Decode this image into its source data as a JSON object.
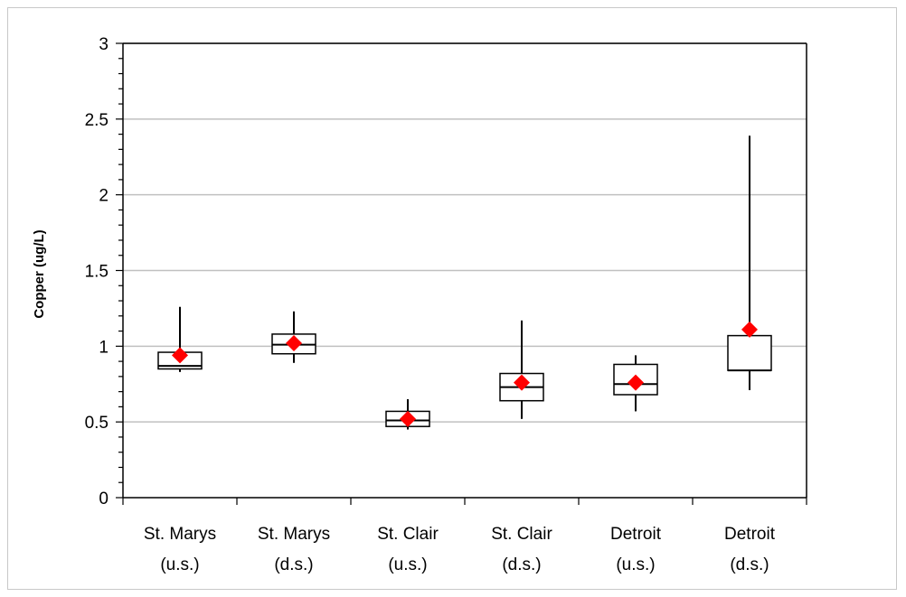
{
  "chart_data": {
    "type": "box",
    "title": "",
    "xlabel": "",
    "ylabel": "Copper (ug/L)",
    "ylim": [
      0,
      3
    ],
    "y_ticks": [
      "0",
      "0.5",
      "1",
      "1.5",
      "2",
      "2.5",
      "3"
    ],
    "grid": "horizontal",
    "categories": [
      {
        "line1": "St. Marys",
        "line2": "(u.s.)"
      },
      {
        "line1": "St. Marys",
        "line2": "(d.s.)"
      },
      {
        "line1": "St. Clair",
        "line2": "(u.s.)"
      },
      {
        "line1": "St. Clair",
        "line2": "(d.s.)"
      },
      {
        "line1": "Detroit",
        "line2": "(u.s.)"
      },
      {
        "line1": "Detroit",
        "line2": "(d.s.)"
      }
    ],
    "boxes": [
      {
        "min": 0.83,
        "q1": 0.85,
        "median": 0.87,
        "q3": 0.96,
        "max": 1.26,
        "mean": 0.94
      },
      {
        "min": 0.89,
        "q1": 0.95,
        "median": 1.01,
        "q3": 1.08,
        "max": 1.23,
        "mean": 1.02
      },
      {
        "min": 0.45,
        "q1": 0.47,
        "median": 0.51,
        "q3": 0.57,
        "max": 0.65,
        "mean": 0.52
      },
      {
        "min": 0.52,
        "q1": 0.64,
        "median": 0.73,
        "q3": 0.82,
        "max": 1.17,
        "mean": 0.76
      },
      {
        "min": 0.57,
        "q1": 0.68,
        "median": 0.75,
        "q3": 0.88,
        "max": 0.94,
        "mean": 0.76
      },
      {
        "min": 0.71,
        "q1": 0.84,
        "median": 0.84,
        "q3": 1.07,
        "max": 2.39,
        "mean": 1.11
      }
    ],
    "colors": {
      "mean_marker": "#ff0000",
      "grid": "#c0c0c0",
      "axis": "#000000"
    }
  }
}
